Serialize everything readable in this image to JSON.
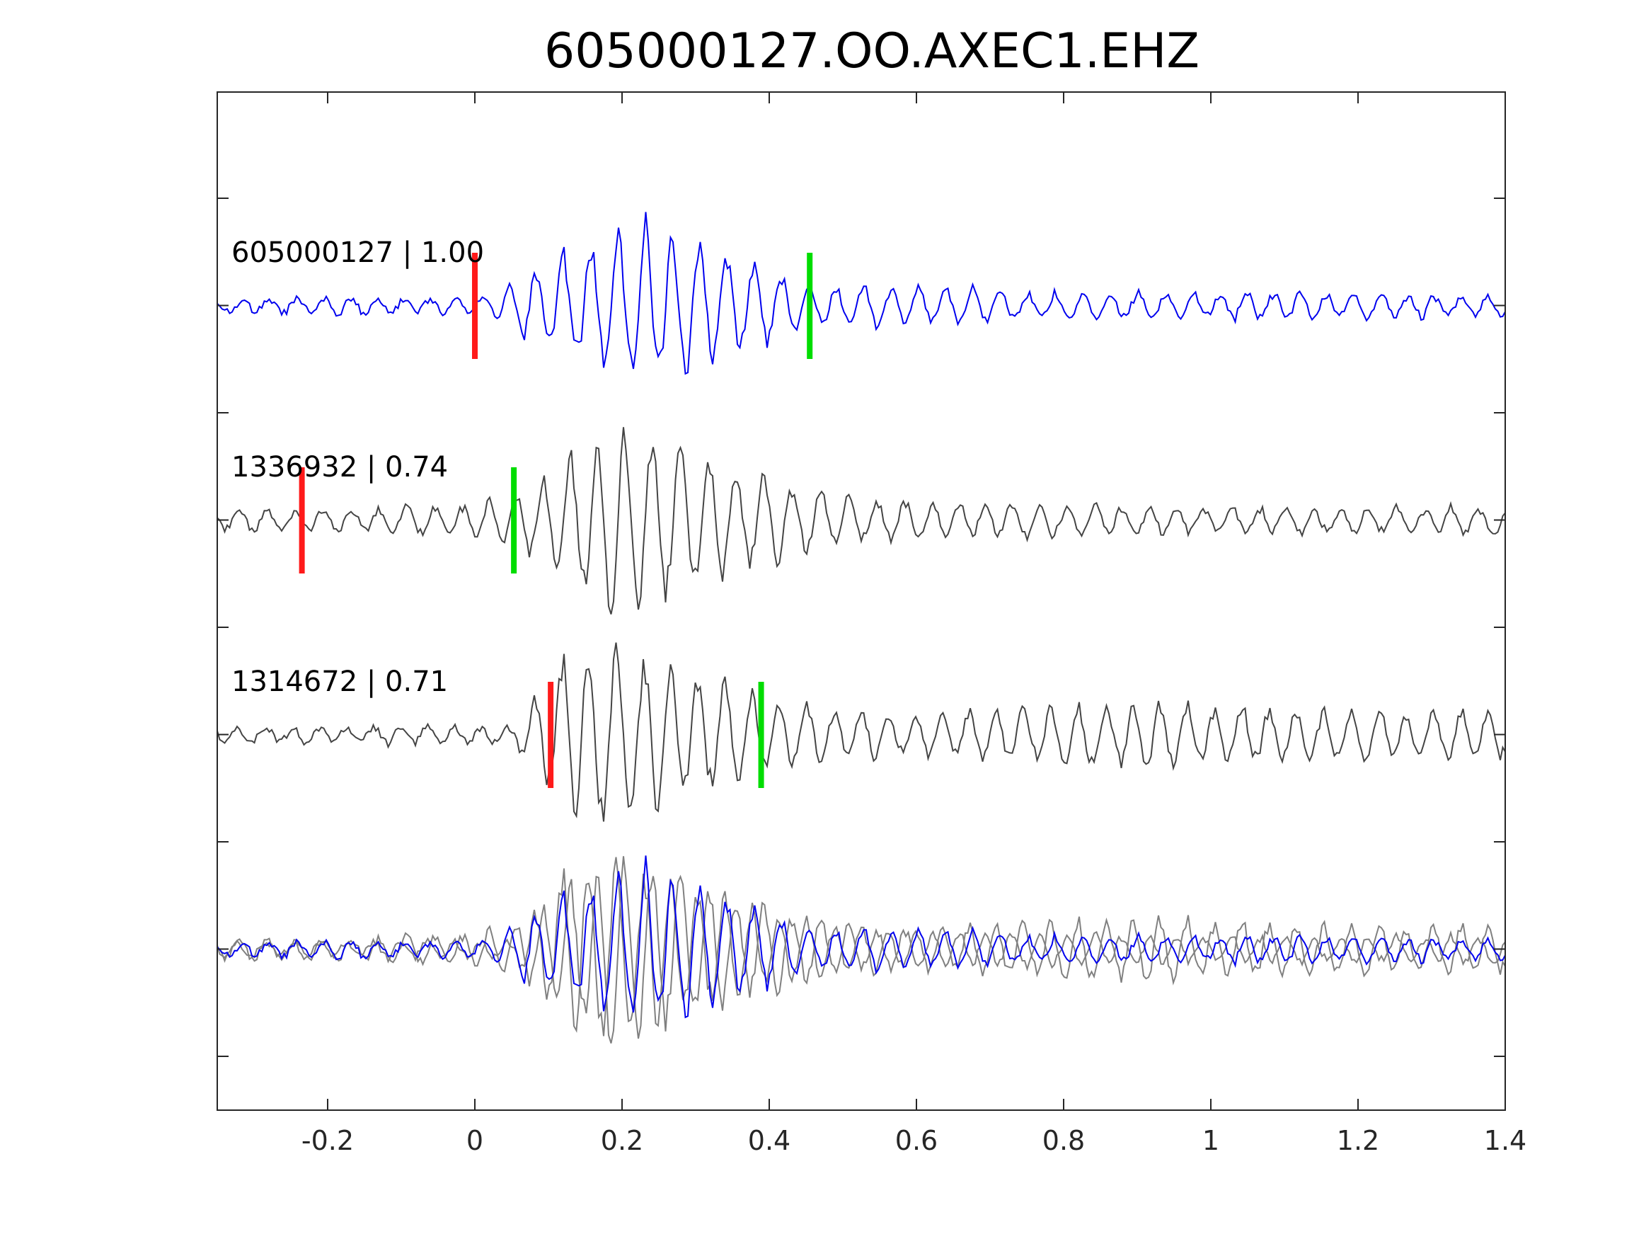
{
  "chart_data": {
    "type": "line",
    "title": "605000127.OO.AXEC1.EHZ",
    "xlabel": "",
    "ylabel": "",
    "xlim": [
      -0.35,
      1.4
    ],
    "x_ticks": [
      -0.2,
      0,
      0.2,
      0.4,
      0.6,
      0.8,
      1,
      1.2,
      1.4
    ],
    "x_tick_labels": [
      "-0.2",
      "0",
      "0.2",
      "0.4",
      "0.6",
      "0.8",
      "1",
      "1.2",
      "1.4"
    ],
    "y_tick_labels_shown": false,
    "grid": false,
    "colors": {
      "template": "#0000ee",
      "match": "#444444",
      "overlay_match": "#808080",
      "pick_red": "#ff1a1a",
      "pick_green": "#00dd00"
    },
    "traces": [
      {
        "label": "605000127 | 1.00",
        "color": "template",
        "offset_row": 0,
        "picks": {
          "red": 0.0,
          "green": 0.455
        },
        "envelope": [
          {
            "t": -0.35,
            "amp": 0.07
          },
          {
            "t": 0.0,
            "amp": 0.1
          },
          {
            "t": 0.05,
            "amp": 0.25
          },
          {
            "t": 0.12,
            "amp": 0.55
          },
          {
            "t": 0.23,
            "amp": 0.9
          },
          {
            "t": 0.38,
            "amp": 0.5
          },
          {
            "t": 0.46,
            "amp": 0.2
          },
          {
            "t": 0.6,
            "amp": 0.22
          },
          {
            "t": 0.8,
            "amp": 0.12
          },
          {
            "t": 1.2,
            "amp": 0.14
          },
          {
            "t": 1.4,
            "amp": 0.1
          }
        ]
      },
      {
        "label": "1336932 | 0.74",
        "color": "match",
        "offset_row": 1,
        "picks": {
          "red": -0.235,
          "green": 0.053
        },
        "envelope": [
          {
            "t": -0.35,
            "amp": 0.11
          },
          {
            "t": 0.0,
            "amp": 0.16
          },
          {
            "t": 0.08,
            "amp": 0.35
          },
          {
            "t": 0.16,
            "amp": 0.95
          },
          {
            "t": 0.22,
            "amp": 1.0
          },
          {
            "t": 0.3,
            "amp": 0.75
          },
          {
            "t": 0.42,
            "amp": 0.4
          },
          {
            "t": 0.55,
            "amp": 0.22
          },
          {
            "t": 1.0,
            "amp": 0.13
          },
          {
            "t": 1.4,
            "amp": 0.14
          }
        ]
      },
      {
        "label": "1314672 | 0.71",
        "color": "match",
        "offset_row": 2,
        "picks": {
          "red": 0.103,
          "green": 0.389
        },
        "envelope": [
          {
            "t": -0.35,
            "amp": 0.08
          },
          {
            "t": 0.05,
            "amp": 0.1
          },
          {
            "t": 0.12,
            "amp": 0.85
          },
          {
            "t": 0.17,
            "amp": 0.95
          },
          {
            "t": 0.28,
            "amp": 0.75
          },
          {
            "t": 0.4,
            "amp": 0.35
          },
          {
            "t": 0.6,
            "amp": 0.22
          },
          {
            "t": 0.85,
            "amp": 0.35
          },
          {
            "t": 1.1,
            "amp": 0.3
          },
          {
            "t": 1.4,
            "amp": 0.25
          }
        ]
      }
    ],
    "overlay": {
      "offset_row": 3,
      "series": [
        "605000127 | 1.00",
        "1336932 | 0.74",
        "1314672 | 0.71"
      ]
    }
  }
}
